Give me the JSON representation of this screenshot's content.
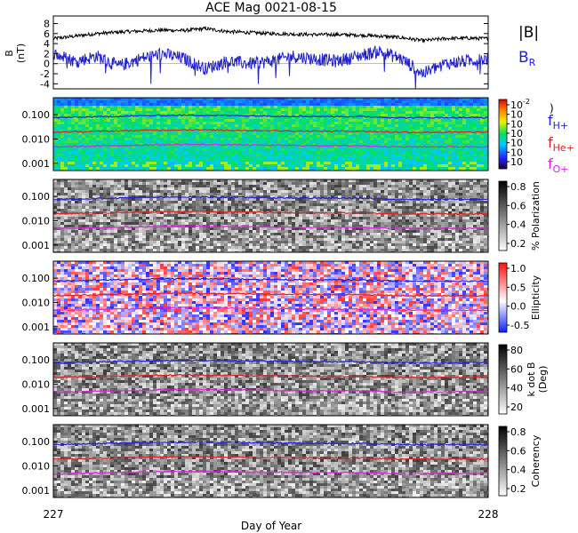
{
  "chart_data": {
    "type": "line",
    "title": "ACE Mag 0021-08-15",
    "xlabel": "Day of Year",
    "x_tick_labels": [
      "227",
      "228"
    ],
    "xlim": [
      227,
      228
    ],
    "panels": [
      {
        "id": "mag",
        "kind": "line",
        "ylabel": "B (nT)",
        "ylabel_lines": [
          "B",
          "(nT)"
        ],
        "ylim": [
          -5,
          9.5
        ],
        "y_ticks": [
          "-4",
          "-2",
          "0",
          "2",
          "4",
          "6",
          "8"
        ],
        "legend": [
          {
            "label": "|B|",
            "color": "#000000"
          },
          {
            "label": "B",
            "sub": "R",
            "color": "#2222cc"
          }
        ],
        "series": [
          {
            "name": "|B|",
            "color": "#000000",
            "x": [
              227.0,
              227.05,
              227.1,
              227.15,
              227.2,
              227.25,
              227.3,
              227.35,
              227.4,
              227.45,
              227.5,
              227.55,
              227.6,
              227.65,
              227.7,
              227.75,
              227.8,
              227.85,
              227.9,
              227.95,
              228.0
            ],
            "values": [
              5.0,
              5.5,
              6.0,
              6.3,
              6.5,
              6.7,
              6.6,
              7.0,
              6.4,
              6.2,
              6.0,
              5.9,
              5.8,
              5.8,
              5.7,
              5.5,
              5.2,
              4.6,
              5.0,
              5.1,
              5.0
            ]
          },
          {
            "name": "B_R",
            "color": "#2222cc",
            "x": [
              227.0,
              227.05,
              227.1,
              227.15,
              227.2,
              227.25,
              227.3,
              227.35,
              227.4,
              227.45,
              227.5,
              227.55,
              227.6,
              227.65,
              227.7,
              227.75,
              227.8,
              227.85,
              227.9,
              227.95,
              228.0
            ],
            "values": [
              2.0,
              0.5,
              1.5,
              -0.5,
              1.0,
              2.0,
              1.0,
              -1.0,
              0.5,
              0.0,
              0.5,
              1.5,
              1.0,
              0.5,
              1.5,
              2.5,
              1.0,
              -2.0,
              0.0,
              0.5,
              1.0
            ]
          }
        ]
      },
      {
        "id": "power",
        "kind": "spectrogram",
        "palette": "rainbow",
        "ylim": [
          0.0005,
          0.5
        ],
        "y_ticks": [
          "0.100",
          "0.010",
          "0.001"
        ],
        "colorbar_ticks": [
          "10",
          "10",
          "10",
          "10",
          "10",
          "10",
          "10"
        ],
        "colorbar_exponents": [
          "-2",
          "",
          "",
          "",
          "",
          "",
          ""
        ],
        "colorbar_label": ")"
      },
      {
        "id": "polarization",
        "kind": "spectrogram",
        "palette": "gray",
        "ylim": [
          0.0005,
          0.5
        ],
        "y_ticks": [
          "0.100",
          "0.010",
          "0.001"
        ],
        "colorbar_ticks": [
          "0.8",
          "0.6",
          "0.4",
          "0.2"
        ],
        "colorbar_label": "% Polarization"
      },
      {
        "id": "ellipticity",
        "kind": "spectrogram",
        "palette": "redblue",
        "ylim": [
          0.0005,
          0.5
        ],
        "y_ticks": [
          "0.100",
          "0.010",
          "0.001"
        ],
        "colorbar_ticks": [
          "1.0",
          "0.5",
          "0.0",
          "-0.5"
        ],
        "colorbar_label": "Ellipticity"
      },
      {
        "id": "kdotb",
        "kind": "spectrogram",
        "palette": "gray",
        "ylim": [
          0.0005,
          0.5
        ],
        "y_ticks": [
          "0.100",
          "0.010",
          "0.001"
        ],
        "colorbar_ticks": [
          "80",
          "60",
          "40",
          "20"
        ],
        "colorbar_label_lines": [
          "k dot B",
          "(Deg)"
        ]
      },
      {
        "id": "coherency",
        "kind": "spectrogram",
        "palette": "gray",
        "ylim": [
          0.0005,
          0.5
        ],
        "y_ticks": [
          "0.100",
          "0.010",
          "0.001"
        ],
        "colorbar_ticks": [
          "0.8",
          "0.6",
          "0.4",
          "0.2"
        ],
        "colorbar_label": "Coherency"
      }
    ],
    "gyrofrequency_lines": [
      {
        "name": "fH+",
        "main": "f",
        "sub": "H+",
        "color": "#2020e0",
        "x": [
          227.0,
          227.1,
          227.2,
          227.3,
          227.4,
          227.5,
          227.6,
          227.7,
          227.8,
          227.9,
          228.0
        ],
        "values": [
          0.075,
          0.082,
          0.09,
          0.095,
          0.093,
          0.088,
          0.085,
          0.084,
          0.075,
          0.076,
          0.076
        ]
      },
      {
        "name": "fHe+",
        "main": "f",
        "sub": "He+",
        "color": "#e02020",
        "x": [
          227.0,
          227.1,
          227.2,
          227.3,
          227.4,
          227.5,
          227.6,
          227.7,
          227.8,
          227.9,
          228.0
        ],
        "values": [
          0.019,
          0.0205,
          0.0225,
          0.024,
          0.023,
          0.022,
          0.021,
          0.021,
          0.019,
          0.019,
          0.019
        ]
      },
      {
        "name": "fO+",
        "main": "f",
        "sub": "O+",
        "color": "#e020e0",
        "x": [
          227.0,
          227.1,
          227.2,
          227.3,
          227.4,
          227.5,
          227.6,
          227.7,
          227.8,
          227.9,
          228.0
        ],
        "values": [
          0.0047,
          0.0051,
          0.0056,
          0.006,
          0.0058,
          0.0055,
          0.0053,
          0.0053,
          0.0047,
          0.0048,
          0.0048
        ]
      }
    ]
  }
}
